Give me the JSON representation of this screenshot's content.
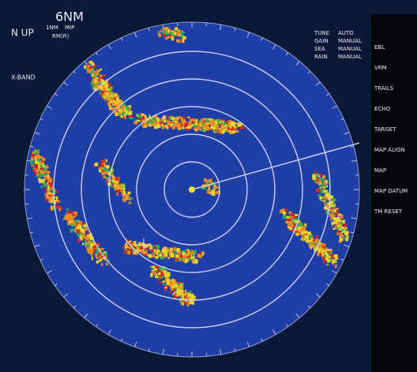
{
  "header": {
    "range": "6NM",
    "orientation": "N UP",
    "ring_interval": "1NM",
    "mode": "MIP",
    "motion": "RM(R)",
    "band": "X-BAND"
  },
  "settings": [
    {
      "name": "TUNE",
      "value": "AUTO"
    },
    {
      "name": "GAIN",
      "value": "MANUAL"
    },
    {
      "name": "SEA",
      "value": "MANUAL"
    },
    {
      "name": "RAIN",
      "value": "MANUAL"
    }
  ],
  "menu": [
    "EBL",
    "VRM",
    "TRAILS",
    "ECHO",
    "TARGET",
    "MAP ALIGN",
    "MAP",
    "MAP DATUM",
    "TM RESET"
  ]
}
